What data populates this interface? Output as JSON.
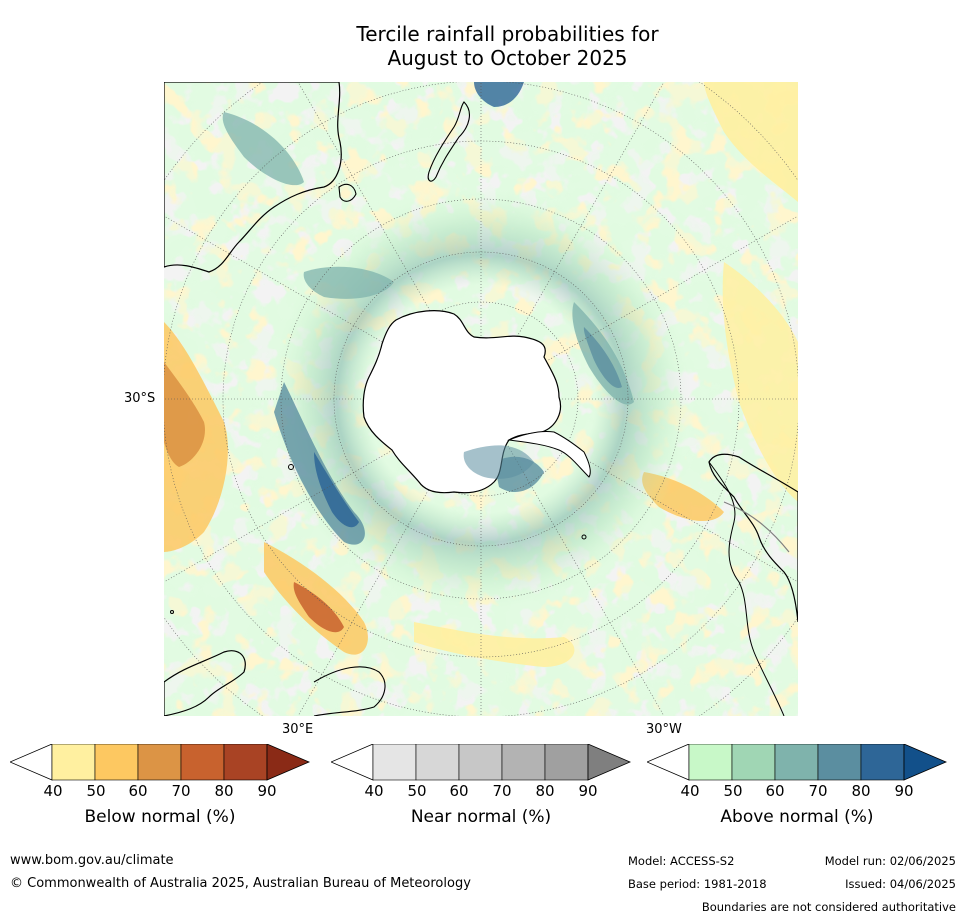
{
  "title": {
    "line1": "Tercile rainfall probabilities for",
    "line2": "August to October 2025"
  },
  "map": {
    "projection": "south-polar-stereographic",
    "labels": {
      "lat": "30°S",
      "lon_e": "30°E",
      "lon_w": "30°W"
    },
    "colors": {
      "antarctica": "#ffffff",
      "ocean_base": "#ffffff",
      "coast": "#000000",
      "grid": "#555555"
    }
  },
  "colorbars": [
    {
      "id": "below",
      "label": "Below normal (%)",
      "ticks": [
        "40",
        "50",
        "60",
        "70",
        "80",
        "90"
      ],
      "colors": [
        "#fff0a0",
        "#fdc861",
        "#dc9445",
        "#c8622e",
        "#a94324",
        "#8a2a16"
      ],
      "under_color": "#ffffff"
    },
    {
      "id": "near",
      "label": "Near normal (%)",
      "ticks": [
        "40",
        "50",
        "60",
        "70",
        "80",
        "90"
      ],
      "colors": [
        "#e5e5e5",
        "#d7d7d7",
        "#c7c7c7",
        "#b3b3b3",
        "#a0a0a0",
        "#7f7f7f"
      ],
      "under_color": "#ffffff"
    },
    {
      "id": "above",
      "label": "Above normal (%)",
      "ticks": [
        "40",
        "50",
        "60",
        "70",
        "80",
        "90"
      ],
      "colors": [
        "#c8f8c8",
        "#a0d6b4",
        "#7fb3ac",
        "#5b8ea0",
        "#2e6697",
        "#12508a"
      ],
      "under_color": "#ffffff"
    }
  ],
  "footer": {
    "website": "www.bom.gov.au/climate",
    "copyright": "© Commonwealth of Australia 2025, Australian Bureau of Meteorology",
    "model": "Model: ACCESS-S2",
    "model_run": "Model run: 02/06/2025",
    "base_period": "Base period: 1981-2018",
    "issued": "Issued: 04/06/2025",
    "disclaimer": "Boundaries are not considered authoritative"
  }
}
